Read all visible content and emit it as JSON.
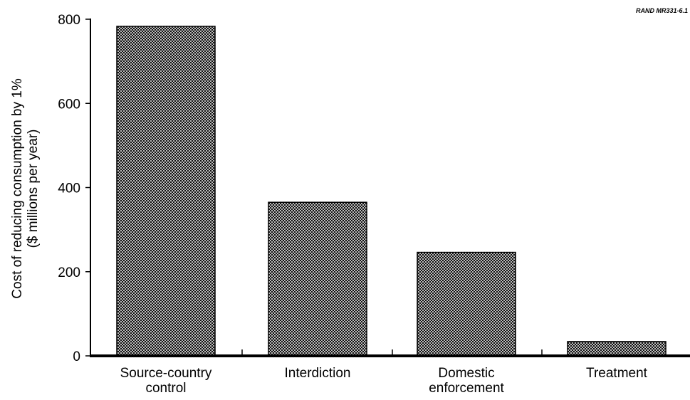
{
  "watermark": "RAND MR331-6.1",
  "chart_data": {
    "type": "bar",
    "title": "",
    "categories": [
      [
        "Source-country",
        "control"
      ],
      [
        "Interdiction"
      ],
      [
        "Domestic",
        "enforcement"
      ],
      [
        "Treatment"
      ]
    ],
    "values": [
      783,
      365,
      246,
      34
    ],
    "ylabel": [
      "Cost of reducing consumption by 1%",
      "($ millions per year)"
    ],
    "xlabel": "",
    "ylim": [
      0,
      800
    ],
    "yticks": [
      0,
      200,
      400,
      600,
      800
    ],
    "grid": false,
    "legend": "none",
    "bar_fill_pattern": "crosshatch",
    "colors": {
      "bar_stroke": "#000000",
      "bar_hatch": "#000000",
      "bar_background": "#ffffff",
      "axis": "#000000"
    }
  }
}
